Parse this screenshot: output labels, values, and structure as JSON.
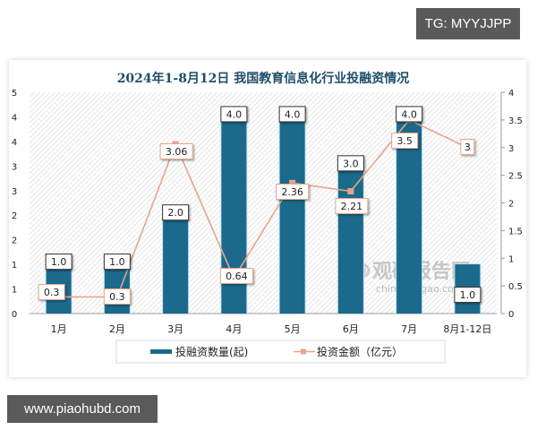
{
  "badges": {
    "top_right": "TG: MYYJJPP",
    "bottom_left": "www.piaohubd.com"
  },
  "watermark": {
    "name": "观研报告网",
    "url": "chinabaogao.com"
  },
  "colors": {
    "bar": "#1b6a8c",
    "bar_edge": "#bfe3f0",
    "line": "#e8a48a",
    "marker": "#e8a48a",
    "label_border_bar": "#333333",
    "label_border_line": "#e8a48a",
    "title": "#1f4e6b"
  },
  "chart_data": {
    "type": "bar",
    "title": "2024年1-8月12日 我国教育信息化行业投融资情况",
    "categories": [
      "1月",
      "2月",
      "3月",
      "4月",
      "5月",
      "6月",
      "7月",
      "8月1-12日"
    ],
    "series": [
      {
        "name": "投融资数量(起)",
        "type": "bar",
        "axis": "left",
        "values": [
          1.0,
          1.0,
          2.0,
          4.0,
          4.0,
          3.0,
          4.0,
          1.0
        ],
        "labels": [
          "1.0",
          "1.0",
          "2.0",
          "4.0",
          "4.0",
          "3.0",
          "4.0",
          "1.0"
        ]
      },
      {
        "name": "投资金额（亿元）",
        "type": "line",
        "axis": "right",
        "values": [
          0.3,
          0.3,
          3.06,
          0.64,
          2.36,
          2.21,
          3.5,
          3
        ],
        "labels": [
          "0.3",
          "0.3",
          "3.06",
          "0.64",
          "2.36",
          "2.21",
          "3.5",
          "3"
        ]
      }
    ],
    "left_axis": {
      "ylim": [
        0,
        4.5
      ],
      "tick_labels": [
        "0",
        "1",
        "1",
        "2",
        "2",
        "3",
        "3",
        "4",
        "4",
        "5"
      ]
    },
    "right_axis": {
      "ylim": [
        0,
        4
      ],
      "tick_labels": [
        "0",
        "0.5",
        "1",
        "1.5",
        "2",
        "2.5",
        "3",
        "3.5",
        "4"
      ]
    },
    "xlabel": "",
    "ylabel": "",
    "grid": false,
    "background": "diagonal-hatch",
    "legend_position": "bottom"
  }
}
